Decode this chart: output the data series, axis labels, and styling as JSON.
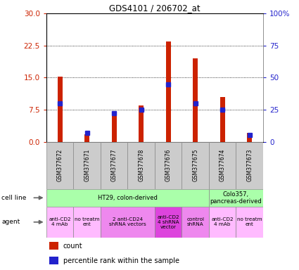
{
  "title": "GDS4101 / 206702_at",
  "samples": [
    "GSM377672",
    "GSM377671",
    "GSM377677",
    "GSM377678",
    "GSM377676",
    "GSM377675",
    "GSM377674",
    "GSM377673"
  ],
  "counts": [
    15.2,
    1.8,
    6.0,
    8.5,
    23.5,
    19.5,
    10.5,
    2.0
  ],
  "percentiles": [
    30,
    7,
    22,
    25,
    45,
    30,
    25,
    5
  ],
  "ylim_left": [
    0,
    30
  ],
  "ylim_right": [
    0,
    100
  ],
  "yticks_left": [
    0,
    7.5,
    15,
    22.5,
    30
  ],
  "yticks_right": [
    0,
    25,
    50,
    75,
    100
  ],
  "bar_color": "#cc2200",
  "pct_color": "#2222cc",
  "cell_line_ht29_color": "#aaffaa",
  "cell_line_colo_color": "#aaffaa",
  "agent_bg_light": "#ffbbff",
  "agent_bg_mid": "#ee77ee",
  "agent_bg_dark": "#dd44dd",
  "sample_box_color": "#cccccc",
  "bar_width": 0.18
}
